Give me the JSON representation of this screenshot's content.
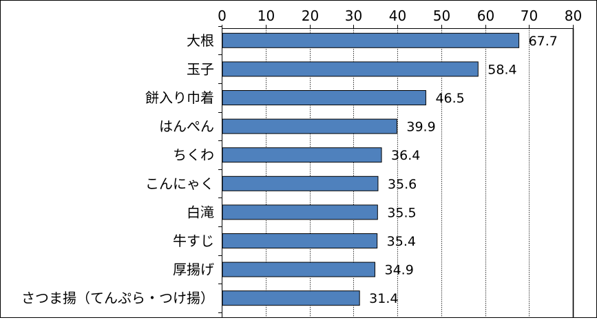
{
  "chart_data": {
    "type": "bar",
    "orientation": "horizontal",
    "categories": [
      "大根",
      "玉子",
      "餅入り巾着",
      "はんぺん",
      "ちくわ",
      "こんにゃく",
      "白滝",
      "牛すじ",
      "厚揚げ",
      "さつま揚（てんぷら・つけ揚）"
    ],
    "values": [
      67.7,
      58.4,
      46.5,
      39.9,
      36.4,
      35.6,
      35.5,
      35.4,
      34.9,
      31.4
    ],
    "data_labels": [
      "67.7",
      "58.4",
      "46.5",
      "39.9",
      "36.4",
      "35.6",
      "35.5",
      "35.4",
      "34.9",
      "31.4"
    ],
    "xlim": [
      0,
      80
    ],
    "x_ticks": [
      0,
      10,
      20,
      30,
      40,
      50,
      60,
      70,
      80
    ],
    "x_tick_labels": [
      "0",
      "10",
      "20",
      "30",
      "40",
      "50",
      "60",
      "70",
      "80"
    ],
    "x_axis_position": "top",
    "grid": true,
    "legend": "none",
    "bar_color": "#4F81BD",
    "bar_edge_color": "#000000",
    "gridline_color": "#000000"
  }
}
